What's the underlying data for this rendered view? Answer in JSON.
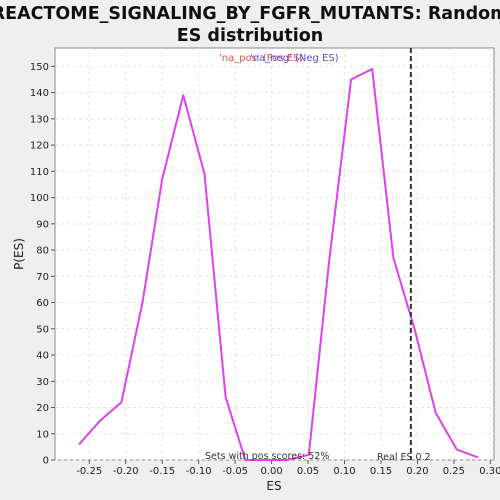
{
  "chart_data": {
    "type": "line",
    "title_lines": [
      "REACTOME_SIGNALING_BY_FGFR_MUTANTS: Random",
      "ES distribution"
    ],
    "xlabel": "ES",
    "ylabel": "P(ES)",
    "xlim": [
      -0.297,
      0.305
    ],
    "ylim": [
      0,
      157
    ],
    "x_ticks": [
      -0.25,
      -0.2,
      -0.15,
      -0.1,
      -0.05,
      0.0,
      0.05,
      0.1,
      0.15,
      0.2,
      0.25,
      0.3
    ],
    "x_tick_labels": [
      "-0.25",
      "-0.20",
      "-0.15",
      "-0.10",
      "-0.05",
      "0.00",
      "0.05",
      "0.10",
      "0.15",
      "0.20",
      "0.25",
      "0.30"
    ],
    "y_ticks": [
      0,
      10,
      20,
      30,
      40,
      50,
      60,
      70,
      80,
      90,
      100,
      110,
      120,
      130,
      140,
      150
    ],
    "grid": true,
    "series": [
      {
        "color": "#e040ee",
        "x": [
          -0.264,
          -0.235,
          -0.206,
          -0.177,
          -0.15,
          -0.121,
          -0.092,
          -0.063,
          -0.036,
          -0.008,
          0.021,
          0.051,
          0.079,
          0.109,
          0.138,
          0.167,
          0.196,
          0.225,
          0.254,
          0.283
        ],
        "y": [
          6,
          15,
          22,
          60,
          107,
          139,
          109,
          24,
          0,
          0,
          0,
          2,
          76,
          145,
          149,
          77,
          50,
          18,
          4,
          1
        ]
      }
    ],
    "legend": {
      "placement": "top-center",
      "entries": [
        {
          "text": "'na_pos' (Pos ES)",
          "color": "#e05050"
        },
        {
          "text": "'na_neg' (Neg ES)",
          "color": "#5050e0"
        }
      ]
    },
    "reference_line": {
      "x": 0.191,
      "label": "Real ES 0.2",
      "style": "dashed",
      "color": "#333333"
    },
    "annotation": "Sets with pos scores: 52%"
  }
}
